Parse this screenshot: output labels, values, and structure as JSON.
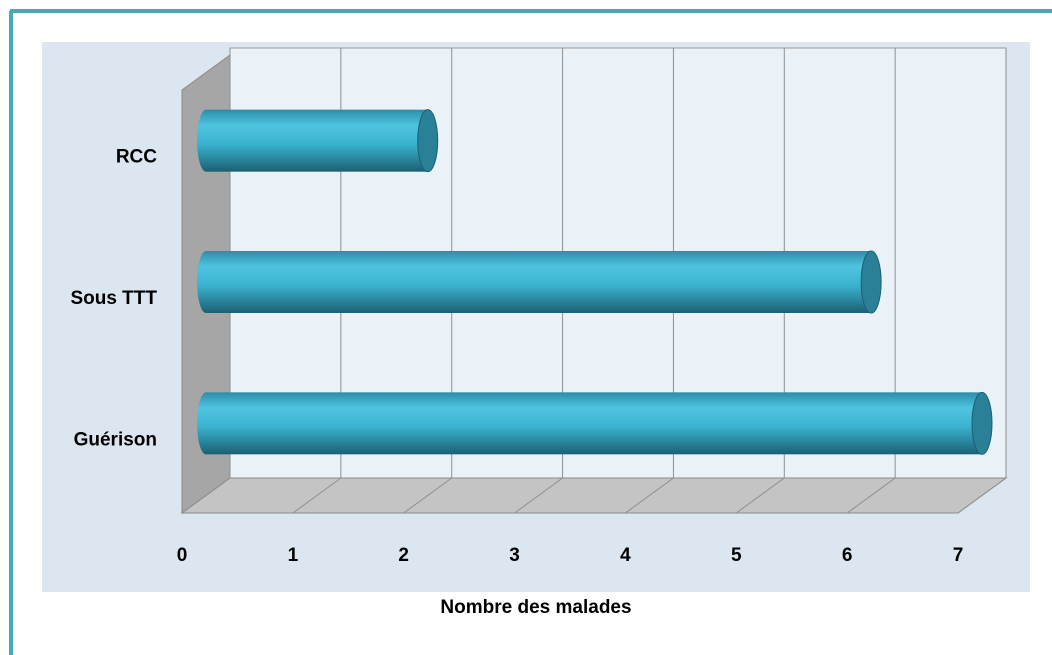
{
  "chart_data": {
    "type": "bar",
    "orientation": "horizontal",
    "categories": [
      "RCC",
      "Sous TTT",
      "Guérison"
    ],
    "values": [
      2,
      6,
      7
    ],
    "color": "#3bb3d0",
    "x_label": "Nombre des malades",
    "xlim": [
      0,
      7
    ],
    "xticks": [
      0,
      1,
      2,
      3,
      4,
      5,
      6,
      7
    ],
    "grid": true
  }
}
